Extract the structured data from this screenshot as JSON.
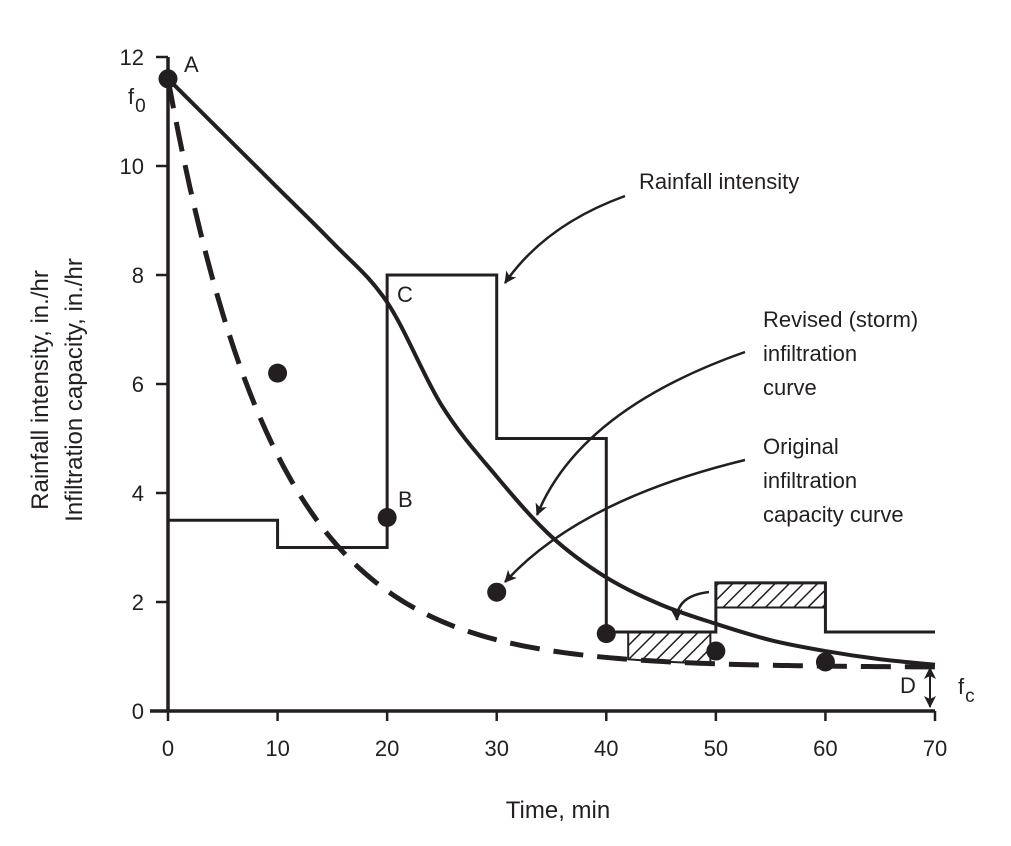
{
  "chart_data": {
    "type": "line",
    "xlabel": "Time, min",
    "ylabel": [
      "Rainfall intensity, in./hr",
      "Infiltration capacity, in./hr"
    ],
    "xlim": [
      0,
      70
    ],
    "ylim": [
      0,
      12
    ],
    "x_ticks": [
      0,
      10,
      20,
      30,
      40,
      50,
      60,
      70
    ],
    "y_ticks": [
      0,
      2,
      4,
      6,
      8,
      10,
      12
    ],
    "grid": false,
    "series": [
      {
        "name": "Rainfall intensity",
        "style": "step",
        "steps": [
          {
            "x0": 0,
            "x1": 10,
            "y": 3.5
          },
          {
            "x0": 10,
            "x1": 20,
            "y": 3.0
          },
          {
            "x0": 20,
            "x1": 30,
            "y": 8.0
          },
          {
            "x0": 30,
            "x1": 40,
            "y": 5.0
          },
          {
            "x0": 40,
            "x1": 50,
            "y": 1.45
          },
          {
            "x0": 50,
            "x1": 60,
            "y": 2.35
          },
          {
            "x0": 60,
            "x1": 70,
            "y": 1.45
          }
        ]
      },
      {
        "name": "Original infiltration capacity curve",
        "style": "dashed",
        "f0": 11.6,
        "fc": 0.8,
        "k": 0.102,
        "points": [
          {
            "x": 0,
            "y": 11.6
          },
          {
            "x": 10,
            "y": 6.2
          },
          {
            "x": 20,
            "y": 3.55
          },
          {
            "x": 30,
            "y": 2.18
          },
          {
            "x": 40,
            "y": 1.42
          },
          {
            "x": 50,
            "y": 1.1
          },
          {
            "x": 60,
            "y": 0.9
          }
        ]
      },
      {
        "name": "Revised (storm) infiltration curve",
        "style": "solid",
        "points": [
          {
            "x": 0,
            "y": 11.6
          },
          {
            "x": 5,
            "y": 10.6
          },
          {
            "x": 10,
            "y": 9.6
          },
          {
            "x": 15,
            "y": 8.6
          },
          {
            "x": 20,
            "y": 7.5
          },
          {
            "x": 25,
            "y": 5.6
          },
          {
            "x": 30,
            "y": 4.3
          },
          {
            "x": 35,
            "y": 3.2
          },
          {
            "x": 40,
            "y": 2.45
          },
          {
            "x": 45,
            "y": 1.95
          },
          {
            "x": 50,
            "y": 1.6
          },
          {
            "x": 55,
            "y": 1.3
          },
          {
            "x": 60,
            "y": 1.1
          },
          {
            "x": 65,
            "y": 0.95
          },
          {
            "x": 70,
            "y": 0.85
          }
        ]
      }
    ],
    "hatched_regions": [
      {
        "name": "excess-40-50",
        "x0": 42,
        "x1": 49.5,
        "y_top": 1.45,
        "y_bottom_curve": "original"
      },
      {
        "name": "excess-50-60",
        "x0": 50,
        "x1": 60,
        "y_top": 2.35,
        "y_bottom": 1.9
      }
    ],
    "point_labels": [
      {
        "text": "A",
        "x": 0,
        "y": 11.6
      },
      {
        "text": "B",
        "x": 20,
        "y": 3.55
      },
      {
        "text": "C",
        "x": 20,
        "y": 7.5
      },
      {
        "text": "D",
        "x": 70,
        "y": 0.85
      }
    ],
    "f0_label": {
      "base": "f",
      "sub": "0"
    },
    "fc_label": {
      "base": "f",
      "sub": "c"
    },
    "annotations": [
      {
        "lines": [
          "Rainfall intensity"
        ],
        "target_series": "Rainfall intensity"
      },
      {
        "lines": [
          "Revised (storm)",
          "infiltration",
          "curve"
        ],
        "target_series": "Revised (storm) infiltration curve"
      },
      {
        "lines": [
          "Original",
          "infiltration",
          "capacity curve"
        ],
        "target_series": "Original infiltration capacity curve"
      }
    ]
  }
}
